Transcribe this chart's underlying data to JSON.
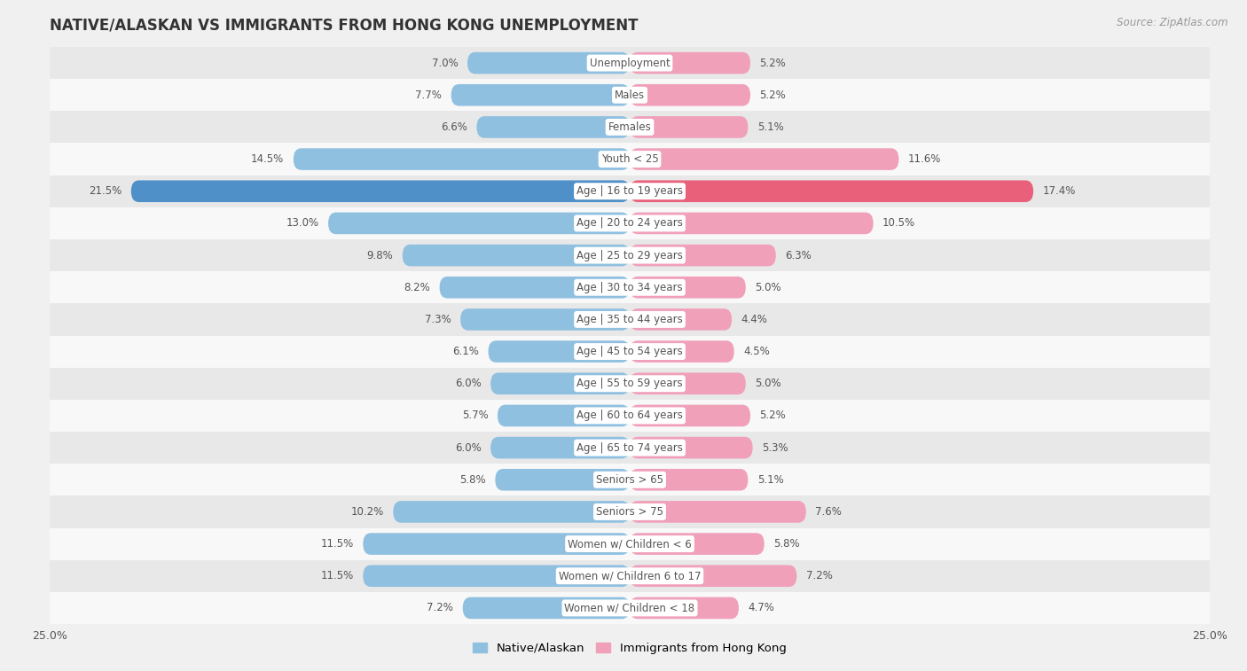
{
  "title": "NATIVE/ALASKAN VS IMMIGRANTS FROM HONG KONG UNEMPLOYMENT",
  "source": "Source: ZipAtlas.com",
  "categories": [
    "Unemployment",
    "Males",
    "Females",
    "Youth < 25",
    "Age | 16 to 19 years",
    "Age | 20 to 24 years",
    "Age | 25 to 29 years",
    "Age | 30 to 34 years",
    "Age | 35 to 44 years",
    "Age | 45 to 54 years",
    "Age | 55 to 59 years",
    "Age | 60 to 64 years",
    "Age | 65 to 74 years",
    "Seniors > 65",
    "Seniors > 75",
    "Women w/ Children < 6",
    "Women w/ Children 6 to 17",
    "Women w/ Children < 18"
  ],
  "native_values": [
    7.0,
    7.7,
    6.6,
    14.5,
    21.5,
    13.0,
    9.8,
    8.2,
    7.3,
    6.1,
    6.0,
    5.7,
    6.0,
    5.8,
    10.2,
    11.5,
    11.5,
    7.2
  ],
  "immigrant_values": [
    5.2,
    5.2,
    5.1,
    11.6,
    17.4,
    10.5,
    6.3,
    5.0,
    4.4,
    4.5,
    5.0,
    5.2,
    5.3,
    5.1,
    7.6,
    5.8,
    7.2,
    4.7
  ],
  "native_color": "#90c0e0",
  "immigrant_color": "#f0a0b8",
  "native_highlight_color": "#5090c8",
  "immigrant_highlight_color": "#e8607a",
  "axis_max": 25.0,
  "bar_height": 0.68,
  "bg_color": "#f0f0f0",
  "row_even_color": "#e8e8e8",
  "row_odd_color": "#f8f8f8",
  "legend_native": "Native/Alaskan",
  "legend_immigrant": "Immigrants from Hong Kong",
  "title_fontsize": 12,
  "source_fontsize": 8.5,
  "label_fontsize": 8.5,
  "category_fontsize": 8.5,
  "highlight_row_index": 4
}
